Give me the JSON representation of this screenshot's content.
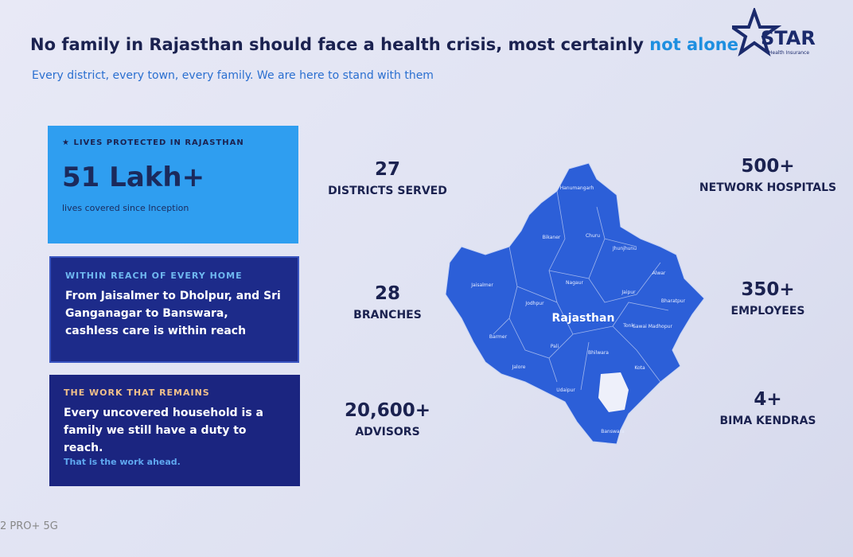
{
  "header": {
    "title": "No family in Rajasthan should face a health crisis, most certainly",
    "title_highlight": "not alone",
    "subtitle": "Every district, every town, every family. We are here to stand with them"
  },
  "logo": {
    "name": "STAR",
    "tagline": "Health Insurance"
  },
  "cards": [
    {
      "label": "LIVES PROTECTED IN RAJASTHAN",
      "value": "51 Lakh+",
      "note": "lives covered since Inception"
    },
    {
      "label": "WITHIN REACH OF EVERY HOME",
      "text": "From Jaisalmer to Dholpur, and Sri Ganganagar to Banswara, cashless care is within reach"
    },
    {
      "label": "THE WORK THAT REMAINS",
      "text": "Every uncovered household is a family we still have a duty to reach.",
      "note": "That is the work ahead."
    }
  ],
  "stats": [
    {
      "value": "27",
      "label": "DISTRICTS SERVED"
    },
    {
      "value": "28",
      "label": "BRANCHES"
    },
    {
      "value": "20,600+",
      "label": "ADVISORS"
    },
    {
      "value": "500+",
      "label": "NETWORK HOSPITALS"
    },
    {
      "value": "350+",
      "label": "EMPLOYEES"
    },
    {
      "value": "4+",
      "label": "BIMA KENDRAS"
    }
  ],
  "map": {
    "title": "Rajasthan",
    "districts": [
      "Hanumangarh",
      "Bikaner",
      "Churu",
      "Jhunjhunu",
      "Alwar",
      "Jaisalmer",
      "Nagaur",
      "Jaipur",
      "Bharatpur",
      "Jodhpur",
      "Tonk",
      "Sawai Madhopur",
      "Barmer",
      "Pali",
      "Bhilwara",
      "Jalore",
      "Kota",
      "Udaipur",
      "Banswara"
    ]
  },
  "watermark": "2 PRO+ 5G"
}
